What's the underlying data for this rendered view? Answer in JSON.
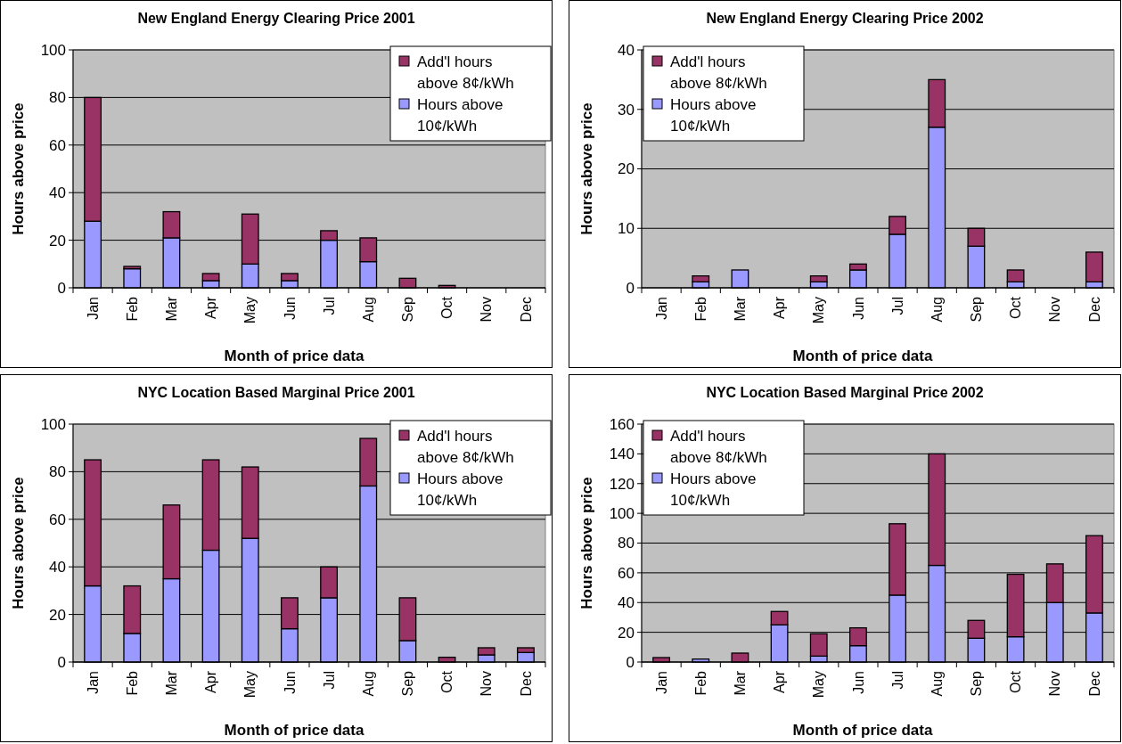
{
  "chart_data": [
    {
      "type": "bar",
      "title": "New England Energy Clearing Price 2001",
      "xlabel": "Month of price data",
      "ylabel": "Hours above price",
      "categories": [
        "Jan",
        "Feb",
        "Mar",
        "Apr",
        "May",
        "Jun",
        "Jul",
        "Aug",
        "Sep",
        "Oct",
        "Nov",
        "Dec"
      ],
      "stacked": true,
      "ylim": [
        0,
        100
      ],
      "yticks": [
        0,
        20,
        40,
        60,
        80,
        100
      ],
      "grid": "y",
      "legend": "top right",
      "series": [
        {
          "name": "Hours above 10¢/kWh",
          "color": "#9999ff",
          "values": [
            28,
            8,
            21,
            3,
            10,
            3,
            20,
            11,
            null,
            0,
            0,
            0
          ]
        },
        {
          "name": "Add'l hours above 8¢/kWh",
          "color": "#993366",
          "values": [
            52,
            1,
            11,
            3,
            21,
            3,
            4,
            10,
            4,
            1,
            0,
            0
          ]
        }
      ]
    },
    {
      "type": "bar",
      "title": "New England Energy Clearing Price 2002",
      "xlabel": "Month of price data",
      "ylabel": "Hours above price",
      "categories": [
        "Jan",
        "Feb",
        "Mar",
        "Apr",
        "May",
        "Jun",
        "Jul",
        "Aug",
        "Sep",
        "Oct",
        "Nov",
        "Dec"
      ],
      "stacked": true,
      "ylim": [
        0,
        40
      ],
      "yticks": [
        0,
        10,
        20,
        30,
        40
      ],
      "grid": "y",
      "legend": "top left",
      "series": [
        {
          "name": "Hours above 10¢/kWh",
          "color": "#9999ff",
          "values": [
            0,
            1,
            3,
            0,
            1,
            3,
            9,
            27,
            7,
            1,
            0,
            1
          ]
        },
        {
          "name": "Add'l hours above 8¢/kWh",
          "color": "#993366",
          "values": [
            0,
            1,
            0,
            0,
            1,
            1,
            3,
            8,
            3,
            2,
            0,
            5
          ]
        }
      ]
    },
    {
      "type": "bar",
      "title": "NYC Location Based Marginal Price 2001",
      "xlabel": "Month of price data",
      "ylabel": "Hours above price",
      "categories": [
        "Jan",
        "Feb",
        "Mar",
        "Apr",
        "May",
        "Jun",
        "Jul",
        "Aug",
        "Sep",
        "Oct",
        "Nov",
        "Dec"
      ],
      "stacked": true,
      "ylim": [
        0,
        100
      ],
      "yticks": [
        0,
        20,
        40,
        60,
        80,
        100
      ],
      "grid": "y",
      "legend": "top right",
      "series": [
        {
          "name": "Hours above 10¢/kWh",
          "color": "#9999ff",
          "values": [
            32,
            12,
            35,
            47,
            52,
            14,
            27,
            74,
            9,
            0,
            3,
            4
          ]
        },
        {
          "name": "Add'l hours above 8¢/kWh",
          "color": "#993366",
          "values": [
            53,
            20,
            31,
            38,
            30,
            13,
            13,
            20,
            18,
            2,
            3,
            2
          ]
        }
      ]
    },
    {
      "type": "bar",
      "title": "NYC Location Based Marginal Price 2002",
      "xlabel": "Month of price data",
      "ylabel": "Hours above price",
      "categories": [
        "Jan",
        "Feb",
        "Mar",
        "Apr",
        "May",
        "Jun",
        "Jul",
        "Aug",
        "Sep",
        "Oct",
        "Nov",
        "Dec"
      ],
      "stacked": true,
      "ylim": [
        0,
        160
      ],
      "yticks": [
        0,
        20,
        40,
        60,
        80,
        100,
        120,
        140,
        160
      ],
      "grid": "y",
      "legend": "top left",
      "series": [
        {
          "name": "Hours above 10¢/kWh",
          "color": "#9999ff",
          "values": [
            0,
            2,
            null,
            25,
            4,
            11,
            45,
            65,
            16,
            17,
            40,
            33
          ]
        },
        {
          "name": "Add'l hours above 8¢/kWh",
          "color": "#993366",
          "values": [
            3,
            0,
            6,
            9,
            15,
            12,
            48,
            75,
            12,
            42,
            26,
            52
          ]
        }
      ]
    }
  ]
}
